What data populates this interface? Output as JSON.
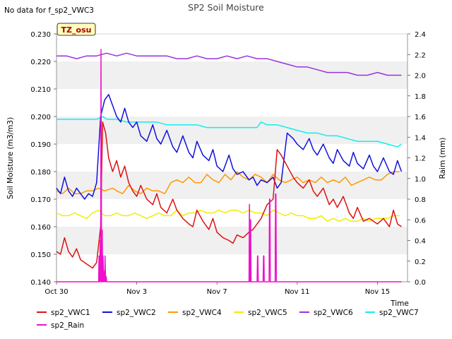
{
  "chart_data": {
    "type": "line",
    "title": "SP2 Soil Moisture",
    "note": "No data for f_sp2_VWC3",
    "site_tag": "TZ_osu",
    "xlabel": "Time",
    "ylabel_left": "Soil Moisture (m3/m3)",
    "ylabel_right": "Raim (mm)",
    "x_ticks": [
      "Oct 30",
      "Nov 3",
      "Nov 7",
      "Nov 11",
      "Nov 15"
    ],
    "x_tick_days": [
      0,
      4,
      8,
      12,
      16
    ],
    "xlim_days": [
      0,
      17.5
    ],
    "ylim_left": [
      0.14,
      0.23
    ],
    "ylim_right": [
      0.0,
      2.4
    ],
    "y_ticks_left": [
      "0.140",
      "0.150",
      "0.160",
      "0.170",
      "0.180",
      "0.190",
      "0.200",
      "0.210",
      "0.220",
      "0.230"
    ],
    "y_ticks_right": [
      "0.0",
      "0.2",
      "0.4",
      "0.6",
      "0.8",
      "1.0",
      "1.2",
      "1.4",
      "1.6",
      "1.8",
      "2.0",
      "2.2",
      "2.4"
    ],
    "grid": "horizontal bands",
    "legend_position": "bottom",
    "series": [
      {
        "name": "sp2_VWC1",
        "color": "#dd1111",
        "axis": "left",
        "x": [
          0,
          0.2,
          0.4,
          0.6,
          0.8,
          1.0,
          1.2,
          1.4,
          1.6,
          1.8,
          2.0,
          2.2,
          2.3,
          2.45,
          2.6,
          2.8,
          3.0,
          3.2,
          3.4,
          3.6,
          3.8,
          4.0,
          4.2,
          4.5,
          4.8,
          5.0,
          5.2,
          5.5,
          5.8,
          6.0,
          6.3,
          6.6,
          6.8,
          7.0,
          7.3,
          7.6,
          7.8,
          8.0,
          8.3,
          8.6,
          8.8,
          9.0,
          9.3,
          9.6,
          9.8,
          10.0,
          10.2,
          10.5,
          10.8,
          11.0,
          11.2,
          11.5,
          11.8,
          12.0,
          12.3,
          12.6,
          12.8,
          13.0,
          13.3,
          13.6,
          13.8,
          14.0,
          14.3,
          14.6,
          14.8,
          15.0,
          15.3,
          15.6,
          15.8,
          16.0,
          16.3,
          16.6,
          16.8,
          17.0,
          17.2
        ],
        "y": [
          0.151,
          0.15,
          0.156,
          0.151,
          0.149,
          0.152,
          0.148,
          0.147,
          0.146,
          0.145,
          0.147,
          0.16,
          0.198,
          0.194,
          0.185,
          0.18,
          0.184,
          0.178,
          0.182,
          0.176,
          0.173,
          0.171,
          0.175,
          0.17,
          0.168,
          0.172,
          0.167,
          0.165,
          0.17,
          0.166,
          0.163,
          0.161,
          0.16,
          0.166,
          0.162,
          0.159,
          0.163,
          0.158,
          0.156,
          0.155,
          0.154,
          0.157,
          0.156,
          0.158,
          0.159,
          0.161,
          0.163,
          0.168,
          0.17,
          0.188,
          0.186,
          0.182,
          0.178,
          0.176,
          0.174,
          0.177,
          0.173,
          0.171,
          0.174,
          0.168,
          0.17,
          0.167,
          0.171,
          0.165,
          0.163,
          0.167,
          0.162,
          0.163,
          0.162,
          0.161,
          0.163,
          0.16,
          0.166,
          0.161,
          0.16
        ]
      },
      {
        "name": "sp2_VWC2",
        "color": "#1111dd",
        "axis": "left",
        "x": [
          0,
          0.2,
          0.4,
          0.6,
          0.8,
          1.0,
          1.2,
          1.4,
          1.6,
          1.8,
          2.0,
          2.2,
          2.4,
          2.6,
          2.8,
          3.0,
          3.2,
          3.4,
          3.6,
          3.8,
          4.0,
          4.2,
          4.5,
          4.8,
          5.0,
          5.2,
          5.5,
          5.8,
          6.0,
          6.3,
          6.6,
          6.8,
          7.0,
          7.3,
          7.6,
          7.8,
          8.0,
          8.3,
          8.6,
          8.8,
          9.0,
          9.3,
          9.6,
          9.8,
          10.0,
          10.2,
          10.5,
          10.8,
          11.0,
          11.2,
          11.5,
          11.8,
          12.0,
          12.3,
          12.6,
          12.8,
          13.0,
          13.3,
          13.6,
          13.8,
          14.0,
          14.3,
          14.6,
          14.8,
          15.0,
          15.3,
          15.6,
          15.8,
          16.0,
          16.3,
          16.6,
          16.8,
          17.0,
          17.2
        ],
        "y": [
          0.174,
          0.172,
          0.178,
          0.173,
          0.171,
          0.174,
          0.172,
          0.17,
          0.172,
          0.171,
          0.176,
          0.2,
          0.206,
          0.208,
          0.204,
          0.2,
          0.198,
          0.203,
          0.198,
          0.196,
          0.198,
          0.193,
          0.191,
          0.197,
          0.192,
          0.19,
          0.195,
          0.189,
          0.187,
          0.193,
          0.187,
          0.185,
          0.191,
          0.186,
          0.184,
          0.188,
          0.182,
          0.18,
          0.186,
          0.181,
          0.179,
          0.18,
          0.177,
          0.178,
          0.175,
          0.177,
          0.176,
          0.178,
          0.174,
          0.176,
          0.194,
          0.192,
          0.19,
          0.188,
          0.192,
          0.188,
          0.186,
          0.19,
          0.185,
          0.183,
          0.188,
          0.184,
          0.182,
          0.187,
          0.183,
          0.181,
          0.186,
          0.182,
          0.18,
          0.185,
          0.18,
          0.179,
          0.184,
          0.18
        ]
      },
      {
        "name": "sp2_VWC4",
        "color": "#ff9900",
        "axis": "left",
        "x": [
          0,
          0.3,
          0.6,
          0.9,
          1.2,
          1.5,
          1.8,
          2.1,
          2.4,
          2.8,
          3.0,
          3.3,
          3.6,
          3.9,
          4.2,
          4.5,
          4.8,
          5.1,
          5.4,
          5.7,
          6.0,
          6.3,
          6.6,
          6.9,
          7.2,
          7.5,
          7.8,
          8.1,
          8.4,
          8.7,
          9.0,
          9.3,
          9.6,
          9.9,
          10.2,
          10.5,
          10.8,
          11.1,
          11.4,
          11.7,
          12.0,
          12.3,
          12.6,
          12.9,
          13.2,
          13.5,
          13.8,
          14.1,
          14.4,
          14.7,
          15.0,
          15.3,
          15.6,
          15.9,
          16.2,
          16.5,
          16.8,
          17.1
        ],
        "y": [
          0.173,
          0.172,
          0.174,
          0.172,
          0.172,
          0.173,
          0.173,
          0.174,
          0.173,
          0.174,
          0.173,
          0.172,
          0.175,
          0.173,
          0.172,
          0.174,
          0.173,
          0.173,
          0.172,
          0.176,
          0.177,
          0.176,
          0.178,
          0.176,
          0.176,
          0.179,
          0.177,
          0.176,
          0.179,
          0.177,
          0.18,
          0.178,
          0.177,
          0.179,
          0.178,
          0.176,
          0.179,
          0.177,
          0.176,
          0.177,
          0.178,
          0.176,
          0.177,
          0.176,
          0.178,
          0.176,
          0.177,
          0.176,
          0.178,
          0.175,
          0.176,
          0.177,
          0.178,
          0.177,
          0.177,
          0.179,
          0.18,
          0.18
        ]
      },
      {
        "name": "sp2_VWC5",
        "color": "#eeee00",
        "axis": "left",
        "x": [
          0,
          0.3,
          0.6,
          0.9,
          1.2,
          1.5,
          1.8,
          2.1,
          2.4,
          2.7,
          3.0,
          3.3,
          3.6,
          3.9,
          4.2,
          4.5,
          4.8,
          5.1,
          5.4,
          5.7,
          6.0,
          6.3,
          6.6,
          6.9,
          7.2,
          7.5,
          7.8,
          8.1,
          8.4,
          8.7,
          9.0,
          9.3,
          9.6,
          9.9,
          10.2,
          10.5,
          10.8,
          11.1,
          11.4,
          11.7,
          12.0,
          12.3,
          12.6,
          12.9,
          13.2,
          13.5,
          13.8,
          14.1,
          14.4,
          14.7,
          15.0,
          15.3,
          15.6,
          15.9,
          16.2,
          16.5,
          16.8,
          17.1
        ],
        "y": [
          0.165,
          0.164,
          0.164,
          0.165,
          0.164,
          0.163,
          0.165,
          0.166,
          0.164,
          0.164,
          0.165,
          0.164,
          0.164,
          0.165,
          0.164,
          0.163,
          0.164,
          0.165,
          0.164,
          0.164,
          0.166,
          0.164,
          0.165,
          0.165,
          0.166,
          0.165,
          0.165,
          0.166,
          0.165,
          0.166,
          0.166,
          0.165,
          0.166,
          0.165,
          0.165,
          0.164,
          0.166,
          0.165,
          0.164,
          0.165,
          0.164,
          0.164,
          0.163,
          0.163,
          0.164,
          0.162,
          0.163,
          0.162,
          0.163,
          0.162,
          0.162,
          0.163,
          0.162,
          0.163,
          0.163,
          0.163,
          0.164,
          0.164
        ]
      },
      {
        "name": "sp2_VWC6",
        "color": "#9933dd",
        "axis": "left",
        "x": [
          0,
          0.5,
          1.0,
          1.5,
          2.0,
          2.5,
          3.0,
          3.5,
          4.0,
          4.5,
          5.0,
          5.5,
          6.0,
          6.5,
          7.0,
          7.5,
          8.0,
          8.5,
          9.0,
          9.5,
          10.0,
          10.5,
          11.0,
          11.5,
          12.0,
          12.5,
          13.0,
          13.5,
          14.0,
          14.5,
          15.0,
          15.5,
          16.0,
          16.5,
          17.0,
          17.2
        ],
        "y": [
          0.222,
          0.222,
          0.221,
          0.222,
          0.222,
          0.223,
          0.222,
          0.223,
          0.222,
          0.222,
          0.222,
          0.222,
          0.221,
          0.221,
          0.222,
          0.221,
          0.221,
          0.222,
          0.221,
          0.222,
          0.221,
          0.221,
          0.22,
          0.219,
          0.218,
          0.218,
          0.217,
          0.216,
          0.216,
          0.216,
          0.215,
          0.215,
          0.216,
          0.215,
          0.215,
          0.215
        ]
      },
      {
        "name": "sp2_VWC7",
        "color": "#11eeee",
        "axis": "left",
        "x": [
          0,
          0.5,
          1.0,
          1.5,
          2.0,
          2.3,
          2.5,
          3.0,
          3.5,
          4.0,
          4.5,
          5.0,
          5.5,
          6.0,
          6.5,
          7.0,
          7.5,
          8.0,
          8.5,
          9.0,
          9.5,
          10.0,
          10.2,
          10.5,
          11.0,
          11.5,
          12.0,
          12.5,
          13.0,
          13.5,
          14.0,
          14.5,
          15.0,
          15.5,
          16.0,
          16.5,
          17.0,
          17.2
        ],
        "y": [
          0.199,
          0.199,
          0.199,
          0.199,
          0.199,
          0.2,
          0.199,
          0.199,
          0.198,
          0.198,
          0.198,
          0.198,
          0.197,
          0.197,
          0.197,
          0.197,
          0.196,
          0.196,
          0.196,
          0.196,
          0.196,
          0.196,
          0.198,
          0.197,
          0.197,
          0.196,
          0.195,
          0.194,
          0.194,
          0.193,
          0.193,
          0.192,
          0.191,
          0.191,
          0.191,
          0.19,
          0.189,
          0.19
        ]
      },
      {
        "name": "sp2_Rain",
        "color": "#ee11cc",
        "axis": "right",
        "x": [
          0,
          2.1,
          2.12,
          2.15,
          2.18,
          2.2,
          2.22,
          2.25,
          2.28,
          2.3,
          2.32,
          2.35,
          2.38,
          2.4,
          2.42,
          2.45,
          2.48,
          2.5,
          9.6,
          9.62,
          9.65,
          9.68,
          9.7,
          10.0,
          10.02,
          10.04,
          10.06,
          10.3,
          10.32,
          10.34,
          10.36,
          10.6,
          10.62,
          10.64,
          10.66,
          10.9,
          10.92,
          10.94,
          10.96,
          17.2
        ],
        "y": [
          0.0,
          0.0,
          0.25,
          0.0,
          0.4,
          0.0,
          2.25,
          0.0,
          0.5,
          0.0,
          0.25,
          0.0,
          0.1,
          0.0,
          0.25,
          0.0,
          0.05,
          0.0,
          0.0,
          0.75,
          0.0,
          0.6,
          0.0,
          0.0,
          0.25,
          0.25,
          0.0,
          0.0,
          0.25,
          0.25,
          0.0,
          0.0,
          0.8,
          0.8,
          0.0,
          0.0,
          0.85,
          0.85,
          0.0,
          0.0
        ]
      }
    ]
  }
}
